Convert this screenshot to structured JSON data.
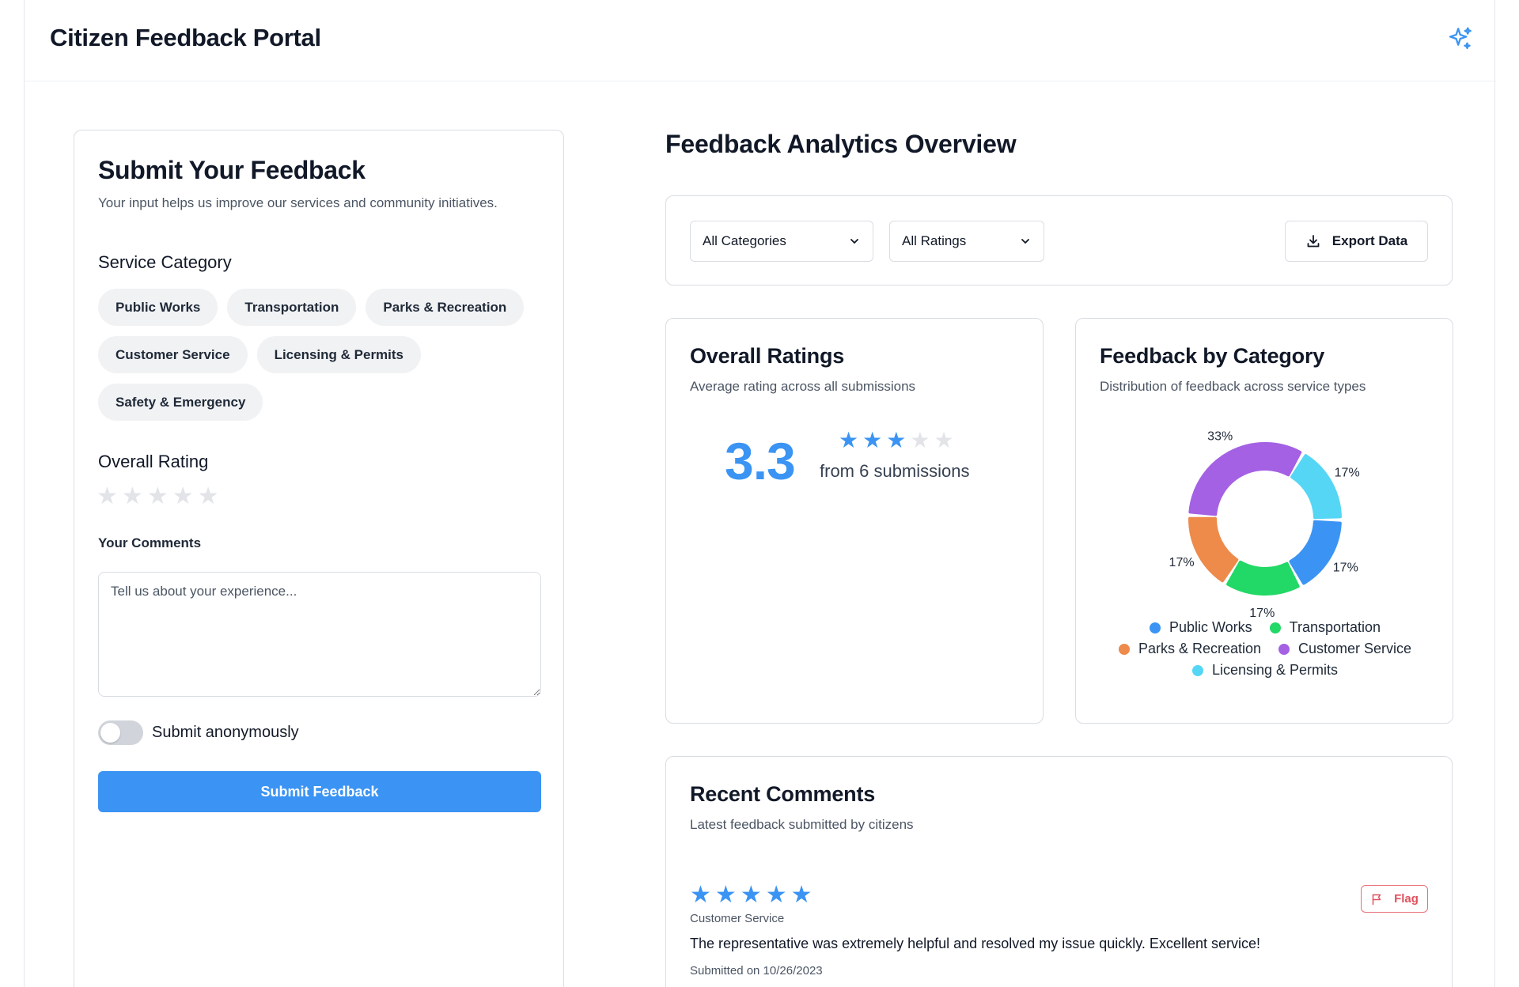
{
  "header": {
    "title": "Citizen Feedback Portal",
    "icon": "sparkles-icon"
  },
  "form": {
    "title": "Submit Your Feedback",
    "subtitle": "Your input helps us improve our services and community initiatives.",
    "category_label": "Service Category",
    "categories": [
      "Public Works",
      "Transportation",
      "Parks & Recreation",
      "Customer Service",
      "Licensing & Permits",
      "Safety & Emergency"
    ],
    "rating_label": "Overall Rating",
    "rating_value": 0,
    "rating_max": 5,
    "comments_label": "Your Comments",
    "comments_placeholder": "Tell us about your experience...",
    "comments_value": "",
    "anonymous_label": "Submit anonymously",
    "anonymous_on": false,
    "submit_label": "Submit Feedback"
  },
  "analytics": {
    "title": "Feedback Analytics Overview",
    "filters": {
      "category_selected": "All Categories",
      "rating_selected": "All Ratings",
      "export_label": "Export Data"
    },
    "ratings": {
      "title": "Overall Ratings",
      "subtitle": "Average rating across all submissions",
      "average": "3.3",
      "stars_filled": 3,
      "stars_max": 5,
      "submissions_text": "from 6 submissions"
    },
    "by_category": {
      "title": "Feedback by Category",
      "subtitle": "Distribution of feedback across service types"
    },
    "recent": {
      "title": "Recent Comments",
      "subtitle": "Latest feedback submitted by citizens",
      "items": [
        {
          "rating": 5,
          "category": "Customer Service",
          "text": "The representative was extremely helpful and resolved my issue quickly. Excellent service!",
          "date": "Submitted on 10/26/2023",
          "flag_label": "Flag"
        }
      ]
    }
  },
  "chart_data": {
    "type": "pie",
    "categories": [
      "Public Works",
      "Transportation",
      "Parks & Recreation",
      "Customer Service",
      "Licensing & Permits"
    ],
    "values": [
      17,
      17,
      17,
      33,
      17
    ],
    "labels": [
      "17%",
      "17%",
      "17%",
      "33%",
      "17%"
    ],
    "colors": [
      "#3b94f3",
      "#22d866",
      "#ee8a4a",
      "#a461e4",
      "#55d6f5"
    ],
    "legend": "bottom"
  },
  "colors": {
    "accent": "#3b94f3",
    "star_empty": "#e2e4e8",
    "flag": "#e2505d"
  }
}
